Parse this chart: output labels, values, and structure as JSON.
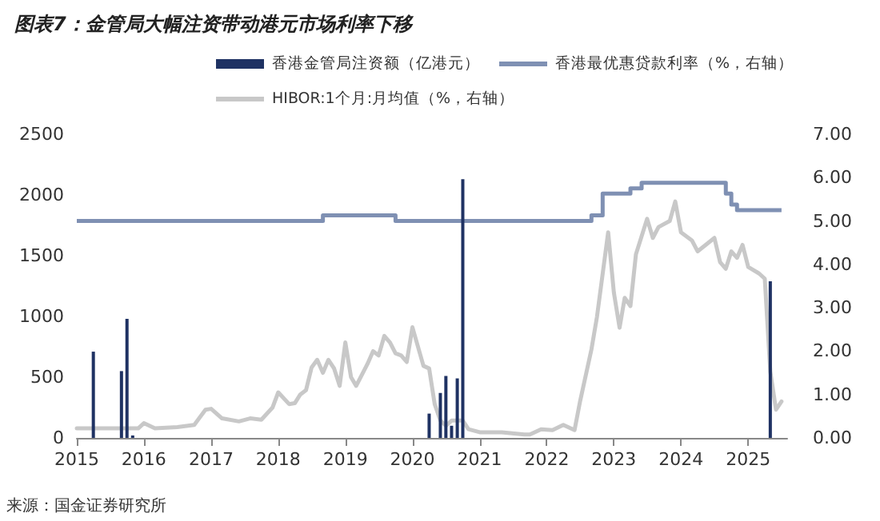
{
  "chart_data": {
    "type": "bar",
    "title": "图表7：金管局大幅注资带动港元市场利率下移",
    "annotations": [
      "来源：国金证券研究所"
    ],
    "legend": "top",
    "grid": false,
    "marker": "none",
    "xlim": [
      "2015-01",
      "2025-08"
    ],
    "xticks": [
      {
        "value": "2015-01",
        "label": "2015"
      },
      {
        "value": "2016-01",
        "label": "2016"
      },
      {
        "value": "2017-01",
        "label": "2017"
      },
      {
        "value": "2018-01",
        "label": "2018"
      },
      {
        "value": "2019-01",
        "label": "2019"
      },
      {
        "value": "2020-01",
        "label": "2020"
      },
      {
        "value": "2021-01",
        "label": "2021"
      },
      {
        "value": "2022-01",
        "label": "2022"
      },
      {
        "value": "2023-01",
        "label": "2023"
      },
      {
        "value": "2024-01",
        "label": "2024"
      },
      {
        "value": "2025-01",
        "label": "2025"
      }
    ],
    "ylim": [
      0,
      2500
    ],
    "yticks": [
      0,
      500,
      1000,
      1500,
      2000,
      2500
    ],
    "y2lim": [
      0,
      7
    ],
    "y2ticks": [
      {
        "value": 0,
        "label": "0.00"
      },
      {
        "value": 1,
        "label": "1.00"
      },
      {
        "value": 2,
        "label": "2.00"
      },
      {
        "value": 3,
        "label": "3.00"
      },
      {
        "value": 4,
        "label": "4.00"
      },
      {
        "value": 5,
        "label": "5.00"
      },
      {
        "value": 6,
        "label": "6.00"
      },
      {
        "value": 7,
        "label": "7.00"
      }
    ],
    "series": [
      {
        "name": "香港金管局注资额（亿港元）",
        "color": "#1f3263",
        "x": [
          "2015-04",
          "2015-09",
          "2015-10",
          "2015-11",
          "2020-04",
          "2020-06",
          "2020-07",
          "2020-08",
          "2020-09",
          "2020-10",
          "2025-05"
        ],
        "values": [
          710,
          550,
          980,
          20,
          200,
          370,
          510,
          100,
          490,
          2130,
          1290
        ]
      },
      {
        "name": "香港最优惠贷款利率（%，右轴）",
        "type": "step",
        "axis": "y2",
        "color": "#7f90b3",
        "x": [
          "2015-01",
          "2018-09",
          "2019-10",
          "2022-09",
          "2022-11",
          "2023-04",
          "2023-06",
          "2024-09",
          "2024-10",
          "2024-11",
          "2025-07"
        ],
        "values": [
          5.0,
          5.13,
          5.0,
          5.13,
          5.63,
          5.75,
          5.88,
          5.63,
          5.38,
          5.25,
          5.25
        ]
      },
      {
        "name": "HIBOR:1个月:月均值（%，右轴）",
        "type": "line",
        "axis": "y2",
        "color": "#c8c8c8",
        "x": [
          "2015-01",
          "2015-12",
          "2016-01",
          "2016-03",
          "2016-07",
          "2016-10",
          "2016-12",
          "2017-01",
          "2017-03",
          "2017-06",
          "2017-08",
          "2017-10",
          "2017-12",
          "2018-01",
          "2018-03",
          "2018-04",
          "2018-05",
          "2018-06",
          "2018-07",
          "2018-08",
          "2018-09",
          "2018-10",
          "2018-11",
          "2018-12",
          "2019-01",
          "2019-02",
          "2019-03",
          "2019-05",
          "2019-06",
          "2019-07",
          "2019-08",
          "2019-09",
          "2019-10",
          "2019-11",
          "2019-12",
          "2020-01",
          "2020-03",
          "2020-04",
          "2020-05",
          "2020-06",
          "2020-07",
          "2020-08",
          "2020-10",
          "2020-11",
          "2021-01",
          "2021-05",
          "2021-09",
          "2021-10",
          "2021-12",
          "2022-02",
          "2022-04",
          "2022-06",
          "2022-07",
          "2022-09",
          "2022-10",
          "2022-12",
          "2023-01",
          "2023-02",
          "2023-03",
          "2023-04",
          "2023-05",
          "2023-07",
          "2023-08",
          "2023-09",
          "2023-11",
          "2023-12",
          "2024-01",
          "2024-03",
          "2024-04",
          "2024-07",
          "2024-08",
          "2024-09",
          "2024-10",
          "2024-11",
          "2024-12",
          "2025-01",
          "2025-03",
          "2025-04",
          "2025-05",
          "2025-06",
          "2025-07"
        ],
        "values": [
          0.22,
          0.22,
          0.34,
          0.22,
          0.25,
          0.3,
          0.65,
          0.67,
          0.45,
          0.38,
          0.45,
          0.42,
          0.7,
          1.05,
          0.78,
          0.8,
          1.0,
          1.1,
          1.62,
          1.8,
          1.5,
          1.8,
          1.6,
          1.2,
          2.2,
          1.4,
          1.2,
          1.7,
          2.0,
          1.9,
          2.35,
          2.2,
          1.95,
          1.9,
          1.75,
          2.55,
          1.66,
          1.6,
          0.78,
          0.4,
          0.28,
          0.4,
          0.4,
          0.2,
          0.13,
          0.13,
          0.08,
          0.08,
          0.2,
          0.18,
          0.3,
          0.18,
          0.84,
          2.04,
          2.79,
          4.74,
          3.35,
          2.54,
          3.23,
          3.04,
          4.23,
          5.05,
          4.61,
          4.86,
          5.0,
          5.45,
          4.74,
          4.55,
          4.3,
          4.61,
          4.05,
          3.9,
          4.3,
          4.15,
          4.45,
          3.94,
          3.79,
          3.67,
          1.53,
          0.65,
          0.84
        ]
      }
    ]
  }
}
